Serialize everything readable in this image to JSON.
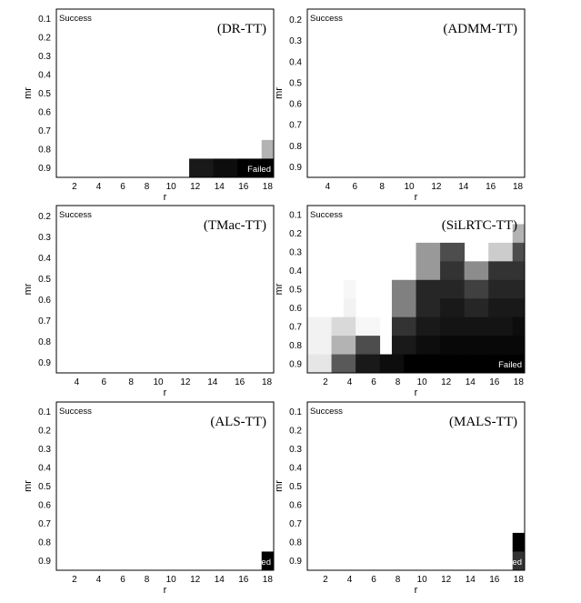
{
  "colors": {
    "frame": "#000000",
    "background": "#ffffff",
    "failed_text": "#ffffff"
  },
  "chart_data": [
    {
      "type": "heatmap",
      "title": "(DR-TT)",
      "xlabel": "r",
      "ylabel": "mr",
      "success_label": "Success",
      "failed_label": "Failed",
      "x_ticks": [
        "2",
        "4",
        "6",
        "8",
        "10",
        "12",
        "14",
        "16",
        "18"
      ],
      "y_ticks": [
        "0.1",
        "0.2",
        "0.3",
        "0.4",
        "0.5",
        "0.6",
        "0.7",
        "0.8",
        "0.9"
      ],
      "x_values": [
        1,
        2,
        3,
        4,
        5,
        6,
        7,
        8,
        9,
        10,
        11,
        12,
        13,
        14,
        15,
        16,
        17,
        18
      ],
      "y_values": [
        0.1,
        0.2,
        0.3,
        0.4,
        0.5,
        0.6,
        0.7,
        0.8,
        0.9
      ],
      "scale": "0 = success (white), 1 = failed (black)",
      "cells": [
        {
          "r": 18,
          "mr": 0.8,
          "value": 0.3
        },
        {
          "r": 12,
          "mr": 0.9,
          "value": 0.9
        },
        {
          "r": 13,
          "mr": 0.9,
          "value": 0.9
        },
        {
          "r": 14,
          "mr": 0.9,
          "value": 0.95
        },
        {
          "r": 15,
          "mr": 0.9,
          "value": 0.95
        },
        {
          "r": 16,
          "mr": 0.9,
          "value": 1.0
        },
        {
          "r": 17,
          "mr": 0.9,
          "value": 1.0
        },
        {
          "r": 18,
          "mr": 0.9,
          "value": 1.0
        }
      ]
    },
    {
      "type": "heatmap",
      "title": "(ADMM-TT)",
      "xlabel": "r",
      "ylabel": "mr",
      "success_label": "Success",
      "failed_label": "",
      "x_ticks": [
        "4",
        "6",
        "8",
        "10",
        "12",
        "14",
        "16",
        "18"
      ],
      "y_ticks": [
        "0.2",
        "0.3",
        "0.4",
        "0.5",
        "0.6",
        "0.7",
        "0.8",
        "0.9"
      ],
      "x_values": [
        3,
        4,
        5,
        6,
        7,
        8,
        9,
        10,
        11,
        12,
        13,
        14,
        15,
        16,
        17,
        18
      ],
      "y_values": [
        0.2,
        0.3,
        0.4,
        0.5,
        0.6,
        0.7,
        0.8,
        0.9
      ],
      "scale": "0 = success (white), 1 = failed (black)",
      "cells": []
    },
    {
      "type": "heatmap",
      "title": "(TMac-TT)",
      "xlabel": "r",
      "ylabel": "mr",
      "success_label": "Success",
      "failed_label": "",
      "x_ticks": [
        "4",
        "6",
        "8",
        "10",
        "12",
        "14",
        "16",
        "18"
      ],
      "y_ticks": [
        "0.2",
        "0.3",
        "0.4",
        "0.5",
        "0.6",
        "0.7",
        "0.8",
        "0.9"
      ],
      "x_values": [
        3,
        4,
        5,
        6,
        7,
        8,
        9,
        10,
        11,
        12,
        13,
        14,
        15,
        16,
        17,
        18
      ],
      "y_values": [
        0.2,
        0.3,
        0.4,
        0.5,
        0.6,
        0.7,
        0.8,
        0.9
      ],
      "scale": "0 = success (white), 1 = failed (black)",
      "cells": []
    },
    {
      "type": "heatmap",
      "title": "(SiLRTC-TT)",
      "xlabel": "r",
      "ylabel": "mr",
      "success_label": "Success",
      "failed_label": "Failed",
      "x_ticks": [
        "2",
        "4",
        "6",
        "8",
        "10",
        "12",
        "14",
        "16",
        "18"
      ],
      "y_ticks": [
        "0.1",
        "0.2",
        "0.3",
        "0.4",
        "0.5",
        "0.6",
        "0.7",
        "0.8",
        "0.9"
      ],
      "x_values": [
        1,
        2,
        3,
        4,
        5,
        6,
        7,
        8,
        9,
        10,
        11,
        12,
        13,
        14,
        15,
        16,
        17,
        18
      ],
      "y_values": [
        0.1,
        0.2,
        0.3,
        0.4,
        0.5,
        0.6,
        0.7,
        0.8,
        0.9
      ],
      "scale": "0 = success (white), 1 = failed (black)",
      "matrix": [
        [
          0,
          0,
          0,
          0,
          0,
          0,
          0,
          0,
          0,
          0,
          0,
          0,
          0,
          0,
          0,
          0,
          0,
          0
        ],
        [
          0,
          0,
          0,
          0,
          0,
          0,
          0,
          0,
          0,
          0,
          0,
          0,
          0,
          0,
          0,
          0,
          0,
          0.3
        ],
        [
          0,
          0,
          0,
          0,
          0,
          0,
          0,
          0,
          0,
          0.4,
          0.4,
          0.7,
          0.7,
          0,
          0,
          0.2,
          0.2,
          0.7
        ],
        [
          0,
          0,
          0,
          0,
          0,
          0,
          0,
          0,
          0,
          0.4,
          0.4,
          0.8,
          0.8,
          0.45,
          0.45,
          0.8,
          0.8,
          0.8
        ],
        [
          0,
          0,
          0,
          0.03,
          0,
          0,
          0,
          0.5,
          0.5,
          0.85,
          0.85,
          0.85,
          0.85,
          0.75,
          0.75,
          0.85,
          0.85,
          0.85
        ],
        [
          0,
          0,
          0,
          0.05,
          0,
          0,
          0,
          0.5,
          0.5,
          0.85,
          0.85,
          0.9,
          0.9,
          0.85,
          0.85,
          0.9,
          0.9,
          0.9
        ],
        [
          0.05,
          0.05,
          0.15,
          0.15,
          0.03,
          0.03,
          0,
          0.8,
          0.8,
          0.9,
          0.9,
          0.92,
          0.92,
          0.92,
          0.92,
          0.92,
          0.92,
          0.95
        ],
        [
          0.05,
          0.05,
          0.3,
          0.3,
          0.7,
          0.7,
          0,
          0.9,
          0.9,
          0.95,
          0.95,
          0.97,
          0.97,
          0.97,
          0.97,
          0.97,
          0.97,
          0.97
        ],
        [
          0.1,
          0.1,
          0.65,
          0.65,
          0.9,
          0.9,
          0.95,
          0.95,
          1.0,
          1.0,
          1.0,
          1.0,
          1.0,
          1.0,
          1.0,
          1.0,
          1.0,
          1.0
        ]
      ]
    },
    {
      "type": "heatmap",
      "title": "(ALS-TT)",
      "xlabel": "r",
      "ylabel": "mr",
      "success_label": "Success",
      "failed_label": "Failed",
      "x_ticks": [
        "2",
        "4",
        "6",
        "8",
        "10",
        "12",
        "14",
        "16",
        "18"
      ],
      "y_ticks": [
        "0.1",
        "0.2",
        "0.3",
        "0.4",
        "0.5",
        "0.6",
        "0.7",
        "0.8",
        "0.9"
      ],
      "x_values": [
        1,
        2,
        3,
        4,
        5,
        6,
        7,
        8,
        9,
        10,
        11,
        12,
        13,
        14,
        15,
        16,
        17,
        18
      ],
      "y_values": [
        0.1,
        0.2,
        0.3,
        0.4,
        0.5,
        0.6,
        0.7,
        0.8,
        0.9
      ],
      "scale": "0 = success (white), 1 = failed (black)",
      "cells": [
        {
          "r": 18,
          "mr": 0.9,
          "value": 1.0
        }
      ]
    },
    {
      "type": "heatmap",
      "title": "(MALS-TT)",
      "xlabel": "r",
      "ylabel": "mr",
      "success_label": "Success",
      "failed_label": "Failed",
      "x_ticks": [
        "2",
        "4",
        "6",
        "8",
        "10",
        "12",
        "14",
        "16",
        "18"
      ],
      "y_ticks": [
        "0.1",
        "0.2",
        "0.3",
        "0.4",
        "0.5",
        "0.6",
        "0.7",
        "0.8",
        "0.9"
      ],
      "x_values": [
        1,
        2,
        3,
        4,
        5,
        6,
        7,
        8,
        9,
        10,
        11,
        12,
        13,
        14,
        15,
        16,
        17,
        18
      ],
      "y_values": [
        0.1,
        0.2,
        0.3,
        0.4,
        0.5,
        0.6,
        0.7,
        0.8,
        0.9
      ],
      "scale": "0 = success (white), 1 = failed (black)",
      "cells": [
        {
          "r": 18,
          "mr": 0.8,
          "value": 1.0
        },
        {
          "r": 18,
          "mr": 0.9,
          "value": 0.8
        }
      ]
    }
  ]
}
